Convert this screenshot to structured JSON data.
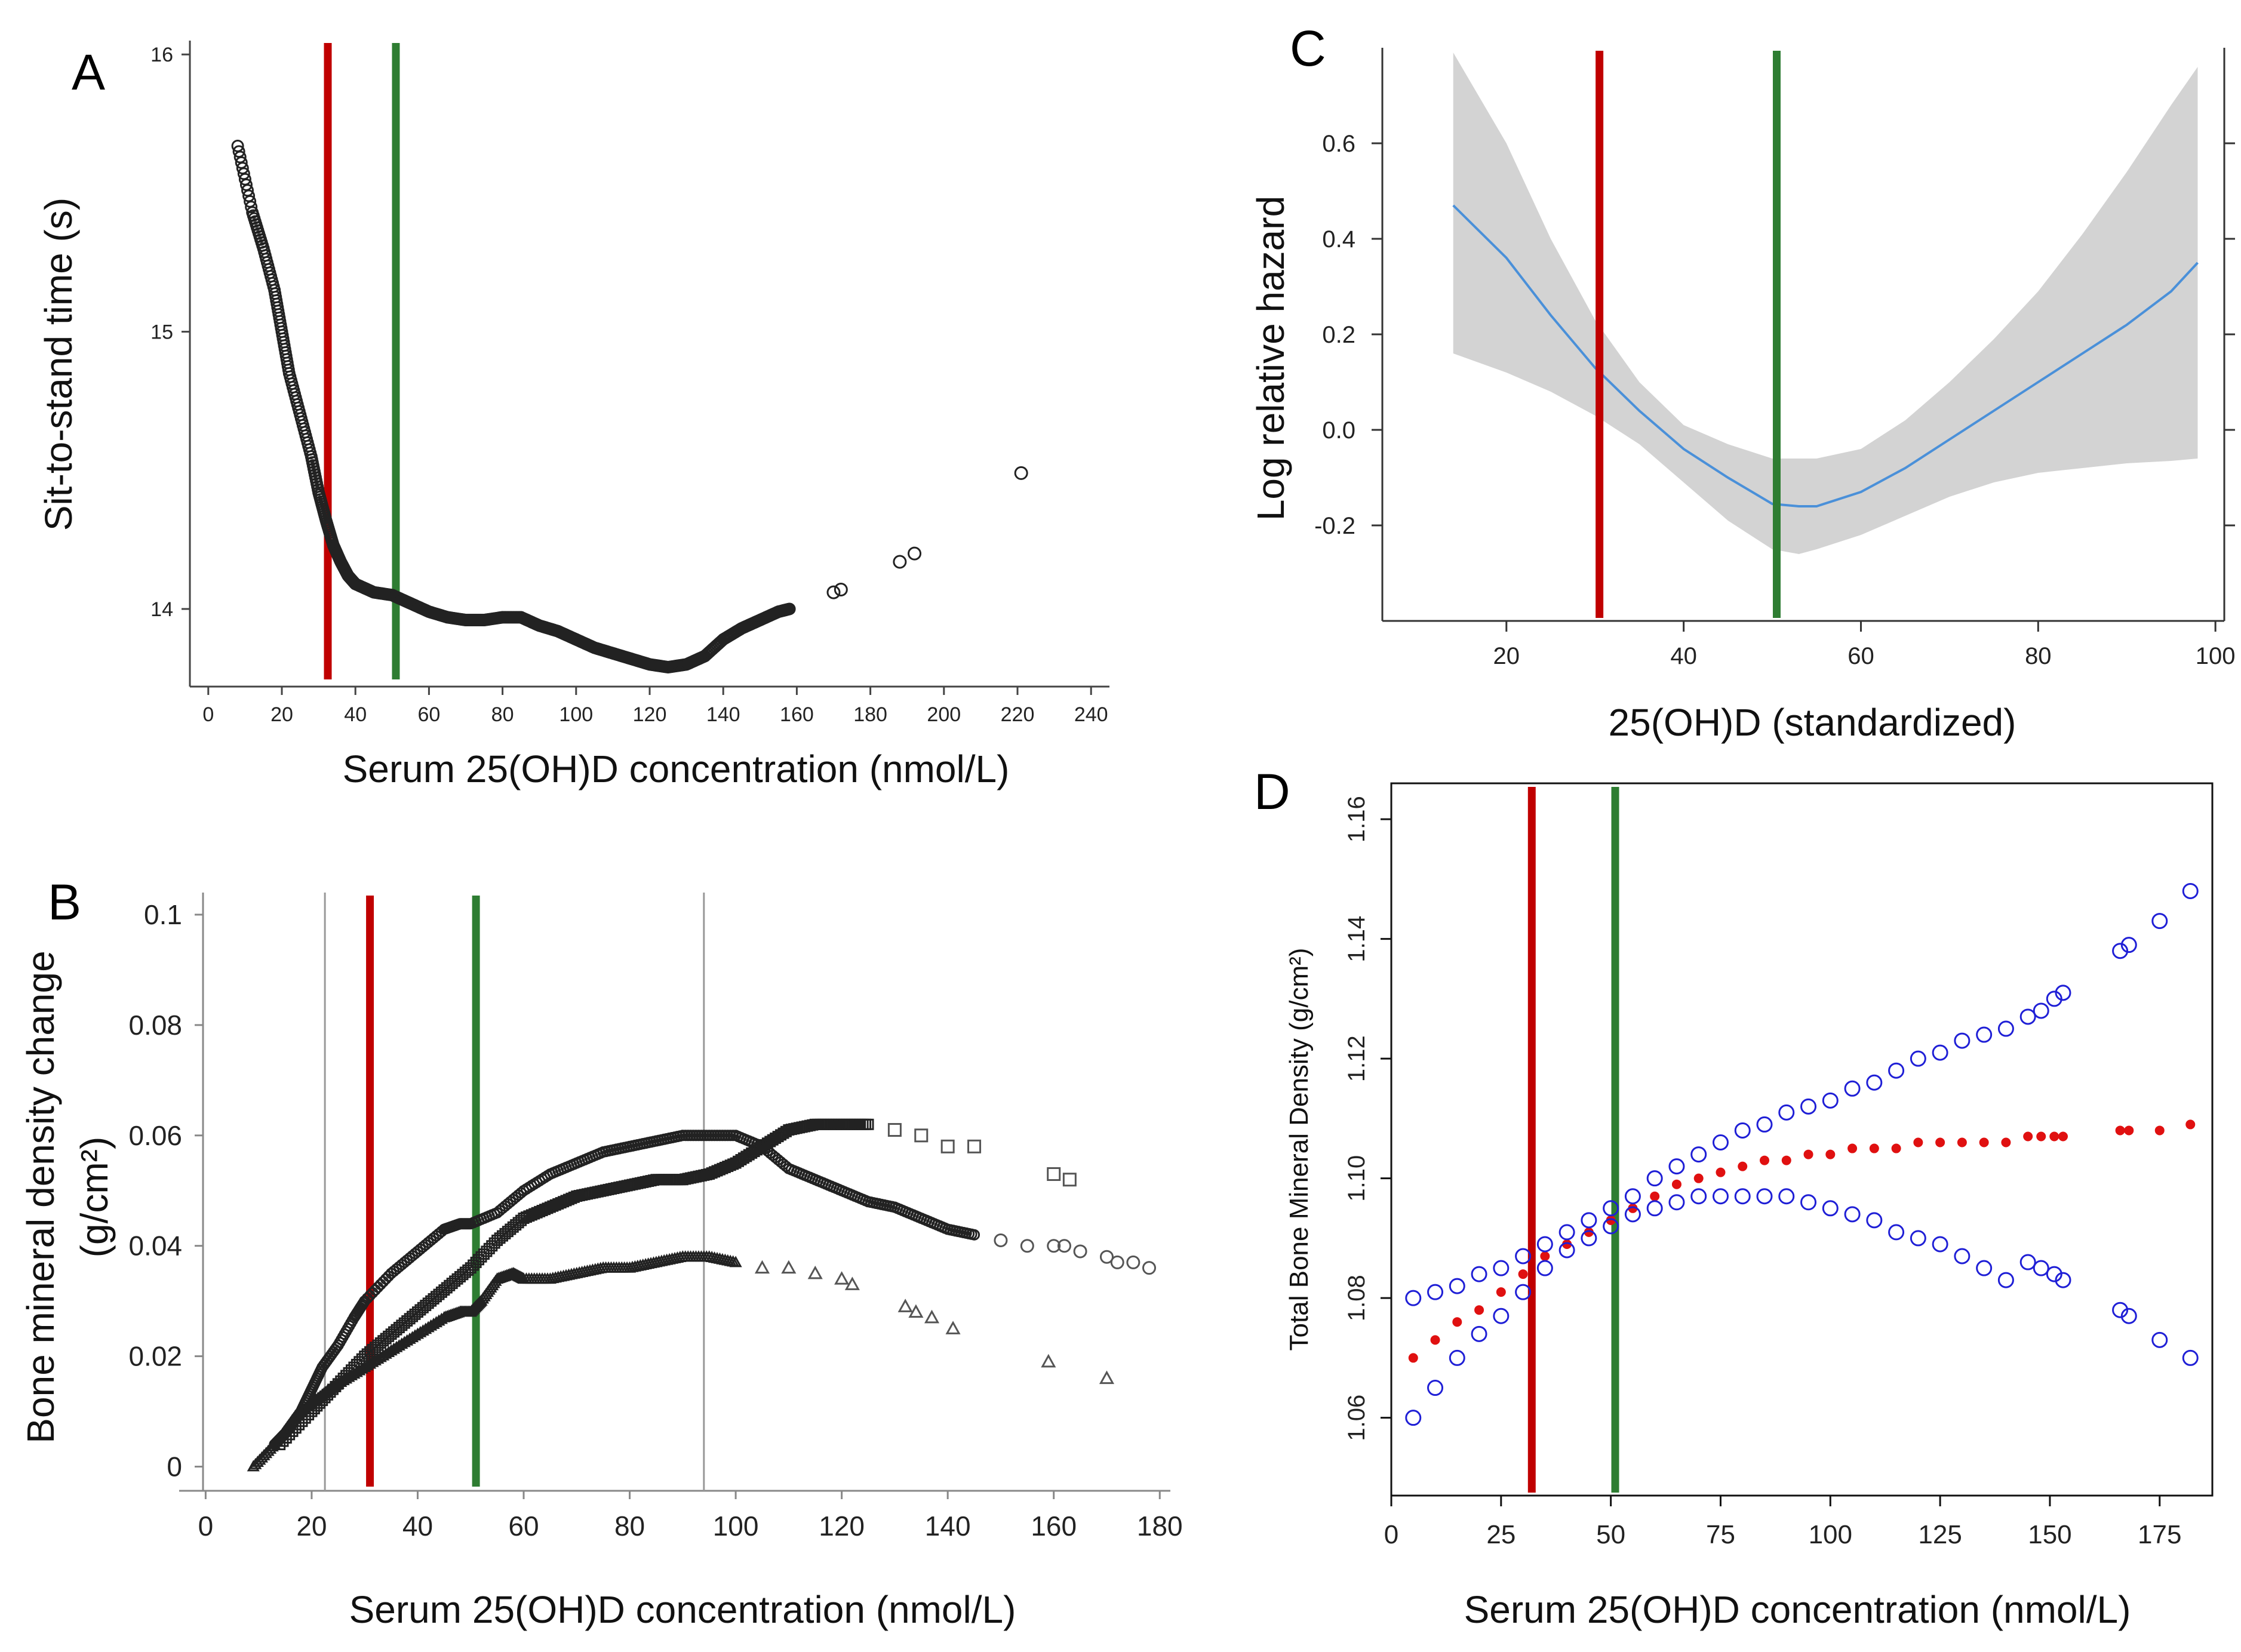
{
  "figure": {
    "reference_line_colors": {
      "red": "#c00000",
      "green": "#2e7d32"
    },
    "marker_colors": {
      "black": "#222222",
      "blue": "#1f1fd6",
      "red": "#e01010",
      "band": "#d3d3d3",
      "curve": "#4a90d9"
    }
  },
  "chart_data": [
    {
      "panel": "A",
      "type": "scatter",
      "xlabel": "Serum 25(OH)D concentration (nmol/L)",
      "ylabel": "Sit-to-stand time (s)",
      "xlim": [
        -5,
        245
      ],
      "ylim": [
        13.72,
        16.05
      ],
      "xticks": [
        "0",
        "20",
        "40",
        "60",
        "80",
        "100",
        "120",
        "140",
        "160",
        "180",
        "200",
        "220",
        "240"
      ],
      "yticks": [
        "14",
        "15",
        "16"
      ],
      "reference_lines": {
        "red_x": 32.5,
        "green_x": 51
      },
      "series": [
        {
          "name": "Sit-to-stand time",
          "marker": "open-circle",
          "x": [
            8,
            12,
            15,
            18,
            20,
            22,
            25,
            28,
            30,
            32,
            34,
            36,
            38,
            40,
            45,
            50,
            55,
            60,
            65,
            70,
            75,
            80,
            85,
            90,
            95,
            100,
            105,
            110,
            115,
            120,
            125,
            130,
            135,
            140,
            145,
            150,
            155,
            158,
            170,
            172,
            188,
            192,
            221
          ],
          "y": [
            15.67,
            15.43,
            15.3,
            15.15,
            15.0,
            14.85,
            14.7,
            14.55,
            14.42,
            14.32,
            14.23,
            14.17,
            14.12,
            14.09,
            14.06,
            14.05,
            14.02,
            13.99,
            13.97,
            13.96,
            13.96,
            13.97,
            13.97,
            13.94,
            13.92,
            13.89,
            13.86,
            13.84,
            13.82,
            13.8,
            13.79,
            13.8,
            13.83,
            13.89,
            13.93,
            13.96,
            13.99,
            14.0,
            14.06,
            14.07,
            14.17,
            14.2,
            14.49
          ]
        }
      ]
    },
    {
      "panel": "B",
      "type": "scatter",
      "xlabel": "Serum 25(OH)D concentration (nmol/L)",
      "ylabel_line1": "Bone mineral density change",
      "ylabel_line2": "(g/cm²)",
      "xlim": [
        -5,
        182
      ],
      "ylim": [
        -0.002,
        0.104
      ],
      "xticks": [
        "0",
        "20",
        "40",
        "60",
        "80",
        "100",
        "120",
        "140",
        "160",
        "180"
      ],
      "yticks": [
        "0",
        "0.02",
        "0.04",
        "0.06",
        "0.08",
        "0.1"
      ],
      "reference_lines": {
        "red_x": 31,
        "green_x": 51
      },
      "gray_lines_x": [
        22.5,
        94
      ],
      "series": [
        {
          "name": "circles",
          "marker": "open-circle",
          "x": [
            13,
            15,
            18,
            20,
            22,
            25,
            28,
            30,
            35,
            40,
            45,
            48,
            50,
            55,
            60,
            65,
            70,
            75,
            80,
            85,
            90,
            95,
            100,
            105,
            110,
            115,
            120,
            125,
            130,
            135,
            140,
            145,
            150,
            155,
            160,
            162,
            165,
            170,
            172,
            175,
            178
          ],
          "y": [
            0.004,
            0.006,
            0.01,
            0.014,
            0.018,
            0.022,
            0.027,
            0.03,
            0.035,
            0.039,
            0.043,
            0.044,
            0.044,
            0.046,
            0.05,
            0.053,
            0.055,
            0.057,
            0.058,
            0.059,
            0.06,
            0.06,
            0.06,
            0.058,
            0.054,
            0.052,
            0.05,
            0.048,
            0.047,
            0.045,
            0.043,
            0.042,
            0.041,
            0.04,
            0.04,
            0.04,
            0.039,
            0.038,
            0.037,
            0.037,
            0.036
          ]
        },
        {
          "name": "squares",
          "marker": "open-square",
          "x": [
            14,
            20,
            25,
            30,
            35,
            40,
            45,
            50,
            55,
            60,
            65,
            70,
            75,
            80,
            85,
            90,
            95,
            100,
            105,
            110,
            115,
            120,
            125,
            130,
            135,
            140,
            145,
            160,
            163
          ],
          "y": [
            0.004,
            0.01,
            0.015,
            0.02,
            0.024,
            0.028,
            0.032,
            0.036,
            0.041,
            0.045,
            0.047,
            0.049,
            0.05,
            0.051,
            0.052,
            0.052,
            0.053,
            0.055,
            0.058,
            0.061,
            0.062,
            0.062,
            0.062,
            0.061,
            0.06,
            0.058,
            0.058,
            0.053,
            0.052
          ]
        },
        {
          "name": "triangles",
          "marker": "open-triangle",
          "x": [
            9,
            13,
            18,
            22,
            25,
            30,
            35,
            40,
            45,
            48,
            50,
            52,
            55,
            58,
            60,
            65,
            70,
            75,
            80,
            85,
            90,
            95,
            100,
            105,
            110,
            115,
            120,
            122,
            132,
            134,
            137,
            141,
            159,
            170
          ],
          "y": [
            0.0,
            0.004,
            0.01,
            0.013,
            0.015,
            0.018,
            0.021,
            0.024,
            0.027,
            0.028,
            0.028,
            0.03,
            0.034,
            0.035,
            0.034,
            0.034,
            0.035,
            0.036,
            0.036,
            0.037,
            0.038,
            0.038,
            0.037,
            0.036,
            0.036,
            0.035,
            0.034,
            0.033,
            0.029,
            0.028,
            0.027,
            0.025,
            0.019,
            0.016
          ]
        }
      ]
    },
    {
      "panel": "C",
      "type": "line",
      "xlabel": "25(OH)D (standardized)",
      "ylabel": "Log relative hazard",
      "xlim": [
        6,
        101
      ],
      "ylim": [
        -0.4,
        0.8
      ],
      "xticks": [
        "20",
        "40",
        "60",
        "80",
        "100"
      ],
      "yticks": [
        "-0.2",
        "0.0",
        "0.2",
        "0.4",
        "0.6"
      ],
      "reference_lines": {
        "red_x": 30.5,
        "green_x": 50.5
      },
      "series": [
        {
          "name": "estimate",
          "x": [
            14,
            20,
            25,
            30,
            35,
            40,
            45,
            50,
            53,
            55,
            60,
            65,
            70,
            75,
            80,
            85,
            90,
            95,
            98
          ],
          "y": [
            0.47,
            0.36,
            0.24,
            0.13,
            0.04,
            -0.04,
            -0.1,
            -0.155,
            -0.16,
            -0.16,
            -0.13,
            -0.08,
            -0.02,
            0.04,
            0.1,
            0.16,
            0.22,
            0.29,
            0.35
          ]
        },
        {
          "name": "ci_lower",
          "x": [
            14,
            20,
            25,
            30,
            35,
            40,
            45,
            50,
            53,
            55,
            60,
            65,
            70,
            75,
            80,
            85,
            90,
            95,
            98
          ],
          "y": [
            0.16,
            0.12,
            0.08,
            0.03,
            -0.03,
            -0.11,
            -0.19,
            -0.25,
            -0.26,
            -0.25,
            -0.22,
            -0.18,
            -0.14,
            -0.11,
            -0.09,
            -0.08,
            -0.07,
            -0.065,
            -0.06
          ]
        },
        {
          "name": "ci_upper",
          "x": [
            14,
            20,
            25,
            30,
            35,
            40,
            45,
            50,
            53,
            55,
            60,
            65,
            70,
            75,
            80,
            85,
            90,
            95,
            98
          ],
          "y": [
            0.79,
            0.6,
            0.4,
            0.23,
            0.1,
            0.01,
            -0.03,
            -0.06,
            -0.06,
            -0.06,
            -0.04,
            0.02,
            0.1,
            0.19,
            0.29,
            0.41,
            0.54,
            0.68,
            0.76
          ]
        }
      ]
    },
    {
      "panel": "D",
      "type": "scatter",
      "xlabel": "Serum 25(OH)D concentration (nmol/L)",
      "ylabel": "Total Bone Mineral Density (g/cm²)",
      "xlim": [
        0,
        187
      ],
      "ylim": [
        1.047,
        1.166
      ],
      "xticks": [
        "0",
        "25",
        "50",
        "75",
        "100",
        "125",
        "150",
        "175"
      ],
      "yticks": [
        "1.06",
        "1.08",
        "1.10",
        "1.12",
        "1.14",
        "1.16"
      ],
      "reference_lines": {
        "red_x": 32,
        "green_x": 51
      },
      "series": [
        {
          "name": "fitted",
          "marker": "filled-circle-red",
          "x": [
            5,
            10,
            15,
            20,
            25,
            30,
            35,
            40,
            45,
            50,
            55,
            60,
            65,
            70,
            75,
            80,
            85,
            90,
            95,
            100,
            105,
            110,
            115,
            120,
            125,
            130,
            135,
            140,
            145,
            148,
            151,
            153,
            166,
            168,
            175,
            182
          ],
          "y": [
            1.07,
            1.073,
            1.076,
            1.078,
            1.081,
            1.084,
            1.087,
            1.089,
            1.091,
            1.093,
            1.095,
            1.097,
            1.099,
            1.1,
            1.101,
            1.102,
            1.103,
            1.103,
            1.104,
            1.104,
            1.105,
            1.105,
            1.105,
            1.106,
            1.106,
            1.106,
            1.106,
            1.106,
            1.107,
            1.107,
            1.107,
            1.107,
            1.108,
            1.108,
            1.108,
            1.109
          ]
        },
        {
          "name": "upper_ci",
          "marker": "open-circle-blue",
          "x": [
            5,
            10,
            15,
            20,
            25,
            30,
            35,
            40,
            45,
            50,
            55,
            60,
            65,
            70,
            75,
            80,
            85,
            90,
            95,
            100,
            105,
            110,
            115,
            120,
            125,
            130,
            135,
            140,
            145,
            148,
            151,
            153,
            166,
            168,
            175,
            182
          ],
          "y": [
            1.08,
            1.081,
            1.082,
            1.084,
            1.085,
            1.087,
            1.089,
            1.091,
            1.093,
            1.095,
            1.097,
            1.1,
            1.102,
            1.104,
            1.106,
            1.108,
            1.109,
            1.111,
            1.112,
            1.113,
            1.115,
            1.116,
            1.118,
            1.12,
            1.121,
            1.123,
            1.124,
            1.125,
            1.127,
            1.128,
            1.13,
            1.131,
            1.138,
            1.139,
            1.143,
            1.148
          ]
        },
        {
          "name": "lower_ci",
          "marker": "open-circle-blue",
          "x": [
            5,
            10,
            15,
            20,
            25,
            30,
            35,
            40,
            45,
            50,
            55,
            60,
            65,
            70,
            75,
            80,
            85,
            90,
            95,
            100,
            105,
            110,
            115,
            120,
            125,
            130,
            135,
            140,
            145,
            148,
            151,
            153,
            166,
            168,
            175,
            182
          ],
          "y": [
            1.06,
            1.065,
            1.07,
            1.074,
            1.077,
            1.081,
            1.085,
            1.088,
            1.09,
            1.092,
            1.094,
            1.095,
            1.096,
            1.097,
            1.097,
            1.097,
            1.097,
            1.097,
            1.096,
            1.095,
            1.094,
            1.093,
            1.091,
            1.09,
            1.089,
            1.087,
            1.085,
            1.083,
            1.086,
            1.085,
            1.084,
            1.083,
            1.078,
            1.077,
            1.073,
            1.07
          ]
        }
      ]
    }
  ]
}
